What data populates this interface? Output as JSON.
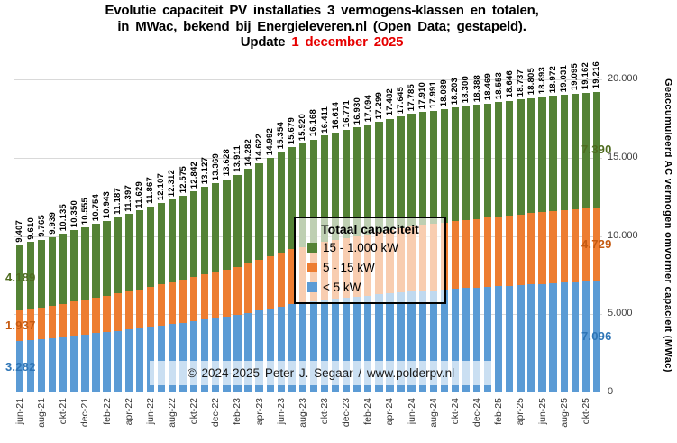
{
  "title": {
    "line1": "Evolutie capaciteit PV installaties 3 vermogens-klassen en totalen,",
    "line2": "in MWac, bekend bij Energieleveren.nl (Open Data; gestapeld).",
    "update_label": "Update ",
    "update_date": "1 december 2025"
  },
  "colors": {
    "bar_green": "#548235",
    "bar_orange": "#ED7D31",
    "bar_blue": "#5B9BD5",
    "label_green": "#4e6b1f",
    "label_orange": "#C55A11",
    "label_blue": "#2E75B6",
    "update_red": "#e60000",
    "grid": "#d9d9d9"
  },
  "legend": {
    "title": "Totaal capaciteit",
    "items": [
      {
        "label": "15 - 1.000 kW",
        "color_key": "bar_green"
      },
      {
        "label": "5 - 15 kW",
        "color_key": "bar_orange"
      },
      {
        "label": "< 5 kW",
        "color_key": "bar_blue"
      }
    ]
  },
  "copyright": "© 2024-2025 Peter J. Segaar / www.polderpv.nl",
  "y_axis": {
    "title": "Geaccumuleerd AC vermogen omvormer capacieit (MWac)",
    "ticks": [
      {
        "value": 20000,
        "label": "20.000"
      },
      {
        "value": 15000,
        "label": "15.000"
      },
      {
        "value": 10000,
        "label": "10.000"
      },
      {
        "value": 5000,
        "label": "5.000"
      },
      {
        "value": 0,
        "label": "0"
      }
    ]
  },
  "chart_data": {
    "type": "bar",
    "stacked": true,
    "title": "Evolutie capaciteit PV installaties 3 vermogens-klassen en totalen, in MWac",
    "ylabel": "Geaccumuleerd AC vermogen omvormer capacieit (MWac)",
    "ylim": [
      0,
      20000
    ],
    "grid": "horizontal",
    "legend_position": "center",
    "series_order_bottom_to_top": [
      "< 5 kW",
      "5 - 15 kW",
      "15 - 1.000 kW"
    ],
    "categories": [
      "jun-21",
      "jul-21",
      "aug-21",
      "sep-21",
      "okt-21",
      "nov-21",
      "dec-21",
      "jan-22",
      "feb-22",
      "mrt-22",
      "apr-22",
      "mei-22",
      "jun-22",
      "jul-22",
      "aug-22",
      "sep-22",
      "okt-22",
      "nov-22",
      "dec-22",
      "jan-23",
      "feb-23",
      "mrt-23",
      "apr-23",
      "mei-23",
      "jun-23",
      "jul-23",
      "aug-23",
      "sep-23",
      "okt-23",
      "nov-23",
      "dec-23",
      "jan-24",
      "feb-24",
      "mrt-24",
      "apr-24",
      "mei-24",
      "jun-24",
      "jul-24",
      "aug-24",
      "sep-24",
      "okt-24",
      "nov-24",
      "dec-24",
      "jan-25",
      "feb-25",
      "mrt-25",
      "apr-25",
      "mei-25",
      "jun-25",
      "jul-25",
      "aug-25",
      "sep-25",
      "okt-25",
      "nov-25"
    ],
    "x_tick_every": 2,
    "totals": [
      9407,
      9610,
      9765,
      9939,
      10135,
      10350,
      10555,
      10754,
      10943,
      11187,
      11397,
      11629,
      11867,
      12107,
      12312,
      12575,
      12842,
      13127,
      13369,
      13628,
      13911,
      14282,
      14622,
      14992,
      15354,
      15679,
      15920,
      16168,
      16411,
      16614,
      16771,
      16930,
      17094,
      17299,
      17482,
      17645,
      17785,
      17910,
      17991,
      18089,
      18203,
      18300,
      18388,
      18469,
      18553,
      18646,
      18737,
      18805,
      18893,
      18972,
      19031,
      19095,
      19162,
      19216
    ],
    "first_bar_segments": {
      "lt5kW": 3282,
      "5to15kW": 1937,
      "15to1000kW": 4189
    },
    "last_bar_segments": {
      "lt5kW": 7096,
      "5to15kW": 4729,
      "15to1000kW": 7390
    },
    "first_bar_segment_labels": {
      "lt5kW": "3.282",
      "5to15kW": "1.937",
      "15to1000kW": "4.189"
    },
    "last_bar_segment_labels": {
      "lt5kW": "7.096",
      "5to15kW": "4.729",
      "15to1000kW": "7.390"
    }
  }
}
